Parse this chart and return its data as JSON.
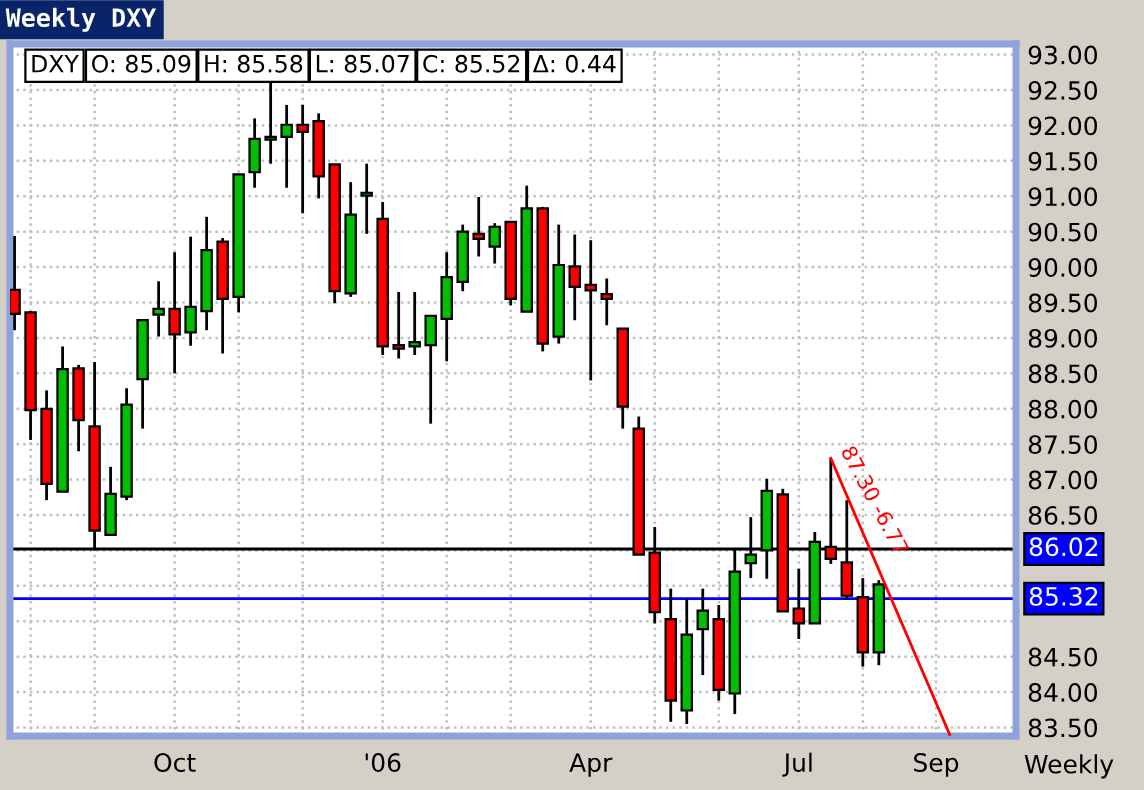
{
  "chart_data": {
    "type": "candlestick",
    "title": "Weekly DXY",
    "x": [
      "2005-07-25",
      "2005-08-01",
      "2005-08-08",
      "2005-08-15",
      "2005-08-22",
      "2005-08-29",
      "2005-09-05",
      "2005-09-12",
      "2005-09-19",
      "2005-09-26",
      "2005-10-03",
      "2005-10-10",
      "2005-10-17",
      "2005-10-24",
      "2005-10-31",
      "2005-11-07",
      "2005-11-14",
      "2005-11-21",
      "2005-11-28",
      "2005-12-05",
      "2005-12-12",
      "2005-12-19",
      "2005-12-26",
      "2006-01-02",
      "2006-01-09",
      "2006-01-16",
      "2006-01-23",
      "2006-01-30",
      "2006-02-06",
      "2006-02-13",
      "2006-02-20",
      "2006-02-27",
      "2006-03-06",
      "2006-03-13",
      "2006-03-20",
      "2006-03-27",
      "2006-04-03",
      "2006-04-10",
      "2006-04-17",
      "2006-04-24",
      "2006-05-01",
      "2006-05-08",
      "2006-05-15",
      "2006-05-22",
      "2006-05-29",
      "2006-06-05",
      "2006-06-12",
      "2006-06-19",
      "2006-06-26",
      "2006-07-03",
      "2006-07-10",
      "2006-07-17",
      "2006-07-24",
      "2006-07-31",
      "2006-08-07"
    ],
    "ohlc": [
      [
        89.68,
        90.44,
        89.11,
        89.34
      ],
      [
        89.36,
        89.38,
        87.56,
        87.98
      ],
      [
        88.0,
        88.26,
        86.71,
        86.94
      ],
      [
        86.83,
        88.88,
        86.83,
        88.56
      ],
      [
        88.57,
        88.62,
        87.4,
        87.84
      ],
      [
        87.75,
        88.66,
        86.0,
        86.28
      ],
      [
        86.22,
        87.18,
        86.22,
        86.8
      ],
      [
        86.76,
        88.29,
        86.71,
        88.06
      ],
      [
        88.42,
        89.25,
        87.72,
        89.25
      ],
      [
        89.33,
        89.8,
        89.02,
        89.41
      ],
      [
        89.41,
        90.21,
        88.5,
        89.05
      ],
      [
        89.08,
        90.43,
        88.89,
        89.44
      ],
      [
        89.38,
        90.71,
        89.11,
        90.24
      ],
      [
        90.36,
        90.41,
        88.78,
        89.55
      ],
      [
        89.58,
        91.31,
        89.36,
        91.31
      ],
      [
        91.34,
        92.1,
        91.12,
        91.81
      ],
      [
        91.8,
        92.61,
        91.46,
        91.84
      ],
      [
        91.84,
        92.29,
        91.12,
        92.01
      ],
      [
        92.01,
        92.29,
        90.76,
        91.91
      ],
      [
        92.06,
        92.17,
        90.97,
        91.28
      ],
      [
        91.45,
        91.45,
        89.49,
        89.66
      ],
      [
        89.63,
        91.2,
        89.58,
        90.74
      ],
      [
        91.01,
        91.46,
        90.47,
        91.05
      ],
      [
        90.68,
        90.92,
        88.76,
        88.88
      ],
      [
        88.9,
        89.65,
        88.71,
        88.85
      ],
      [
        88.88,
        89.65,
        88.76,
        88.94
      ],
      [
        88.9,
        89.31,
        87.79,
        89.31
      ],
      [
        89.27,
        90.21,
        88.67,
        89.86
      ],
      [
        89.79,
        90.6,
        89.66,
        90.5
      ],
      [
        90.47,
        90.99,
        90.15,
        90.4
      ],
      [
        90.29,
        90.62,
        90.05,
        90.57
      ],
      [
        90.64,
        90.64,
        89.46,
        89.55
      ],
      [
        89.37,
        91.15,
        89.37,
        90.83
      ],
      [
        90.83,
        90.85,
        88.81,
        88.92
      ],
      [
        89.02,
        90.6,
        88.92,
        90.03
      ],
      [
        90.01,
        90.46,
        89.25,
        89.72
      ],
      [
        89.75,
        90.38,
        88.4,
        89.67
      ],
      [
        89.62,
        89.84,
        89.18,
        89.55
      ],
      [
        89.13,
        89.13,
        87.72,
        88.03
      ],
      [
        87.72,
        87.89,
        85.94,
        85.94
      ],
      [
        85.97,
        86.33,
        84.97,
        85.13
      ],
      [
        85.03,
        85.46,
        83.58,
        83.88
      ],
      [
        83.74,
        85.32,
        83.55,
        84.81
      ],
      [
        84.89,
        85.46,
        84.24,
        85.15
      ],
      [
        85.03,
        85.23,
        83.88,
        84.03
      ],
      [
        83.98,
        86.02,
        83.69,
        85.7
      ],
      [
        85.82,
        86.47,
        85.61,
        85.94
      ],
      [
        86.0,
        87.01,
        85.6,
        86.84
      ],
      [
        86.79,
        86.87,
        85.14,
        85.14
      ],
      [
        85.18,
        85.74,
        84.75,
        84.97
      ],
      [
        84.97,
        86.26,
        84.97,
        86.12
      ],
      [
        86.05,
        87.3,
        85.81,
        85.88
      ],
      [
        85.83,
        86.71,
        85.3,
        85.36
      ],
      [
        85.34,
        85.61,
        84.36,
        84.56
      ],
      [
        84.56,
        85.58,
        84.38,
        85.52
      ]
    ],
    "series": [
      {
        "type": "line",
        "color": "#ff0000",
        "x": [
          "2006-07-17",
          "2006-09-07"
        ],
        "values": [
          87.3,
          83.4
        ]
      }
    ],
    "xlim": [
      "2005-07-23",
      "2006-10-06"
    ],
    "xticks": [
      {
        "value": "2005-08-01",
        "label": null
      },
      {
        "value": "2005-08-29",
        "label": null
      },
      {
        "value": "2005-10-03",
        "label": "Oct"
      },
      {
        "value": "2005-10-31",
        "label": null
      },
      {
        "value": "2005-11-28",
        "label": null
      },
      {
        "value": "2006-01-02",
        "label": "'06"
      },
      {
        "value": "2006-01-30",
        "label": null
      },
      {
        "value": "2006-02-27",
        "label": null
      },
      {
        "value": "2006-04-03",
        "label": "Apr"
      },
      {
        "value": "2006-05-01",
        "label": null
      },
      {
        "value": "2006-05-29",
        "label": null
      },
      {
        "value": "2006-07-03",
        "label": "Jul"
      },
      {
        "value": "2006-07-31",
        "label": null
      },
      {
        "value": "2006-09-01",
        "label": "Sep"
      }
    ],
    "ylim": [
      83.38,
      93.15
    ],
    "yticks": [
      {
        "value": 83.5,
        "label": "83.50"
      },
      {
        "value": 84.0,
        "label": "84.00"
      },
      {
        "value": 84.5,
        "label": "84.50"
      },
      {
        "value": 85.0,
        "label": null
      },
      {
        "value": 85.5,
        "label": null
      },
      {
        "value": 86.0,
        "label": null
      },
      {
        "value": 86.5,
        "label": "86.50"
      },
      {
        "value": 87.0,
        "label": "87.00"
      },
      {
        "value": 87.5,
        "label": "87.50"
      },
      {
        "value": 88.0,
        "label": "88.00"
      },
      {
        "value": 88.5,
        "label": "88.50"
      },
      {
        "value": 89.0,
        "label": "89.00"
      },
      {
        "value": 89.5,
        "label": "89.50"
      },
      {
        "value": 90.0,
        "label": "90.00"
      },
      {
        "value": 90.5,
        "label": "90.50"
      },
      {
        "value": 91.0,
        "label": "91.00"
      },
      {
        "value": 91.5,
        "label": "91.50"
      },
      {
        "value": 92.0,
        "label": "92.00"
      },
      {
        "value": 92.5,
        "label": "92.50"
      },
      {
        "value": 93.0,
        "label": "93.00"
      }
    ],
    "ref_lines": [
      {
        "axis": "y",
        "value": 86.02,
        "label": "86.02",
        "color": "#000000"
      },
      {
        "axis": "y",
        "value": 85.32,
        "label": "85.32",
        "color": "#0000ff"
      }
    ],
    "annotations": [
      "DXY",
      "O: 85.09",
      "H: 85.58",
      "L: 85.07",
      "C: 85.52",
      "Δ: 0.44",
      {
        "text": "87.30 -6.77",
        "x": "2006-07-17",
        "y": 87.3
      },
      "Weekly"
    ],
    "grid": true,
    "legend": false
  }
}
